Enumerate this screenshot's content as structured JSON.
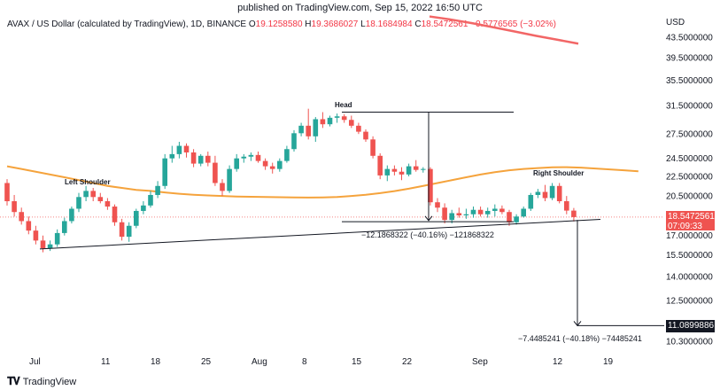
{
  "header": {
    "published": "published on TradingView.com, Sep 15, 2022 16:50 UTC"
  },
  "legend": {
    "symbol": "AVAX / US Dollar (calculated by TradingView), 1D, BINANCE",
    "o_label": "O",
    "o": "19.1258580",
    "h_label": "H",
    "h": "19.3686027",
    "l_label": "L",
    "l": "18.1684984",
    "c_label": "C",
    "c": "18.5472561",
    "change": "−0.5776565 (−3.02%)"
  },
  "currency": "USD",
  "footer": {
    "brand": "TradingView"
  },
  "colors": {
    "up": "#26a69a",
    "down": "#ef5350",
    "ma50": "#f5a33c",
    "ma200": "#f26666",
    "last": "#ef5350"
  },
  "chart_data": {
    "type": "candlestick",
    "y_scale": "log",
    "y_ticks": [
      "43.5000000",
      "39.5000000",
      "35.5000000",
      "31.5000000",
      "27.5000000",
      "24.5000000",
      "22.5000000",
      "20.5000000",
      "17.0000000",
      "15.5000000",
      "14.0000000",
      "12.5000000",
      "10.3000000"
    ],
    "x_ticks": [
      "Jul",
      "11",
      "18",
      "25",
      "Aug",
      "8",
      "15",
      "22",
      "Sep",
      "12",
      "19"
    ],
    "last_price": "18.5472561",
    "countdown": "07:09:33",
    "target_price": "11.0899886",
    "annotations": {
      "head": "Head",
      "left_shoulder": "Left Shoulder",
      "right_shoulder": "Right Shoulder",
      "measure1": "−12.1868322 (−40.16%) −121868322",
      "measure2": "−7.4485241 (−40.18%) −74485241"
    },
    "candles": [
      [
        21.8,
        22.2,
        19.6,
        20.0
      ],
      [
        20.0,
        20.6,
        18.6,
        19.0
      ],
      [
        19.0,
        19.4,
        17.9,
        18.2
      ],
      [
        18.2,
        18.6,
        17.1,
        17.4
      ],
      [
        17.4,
        17.8,
        16.3,
        16.6
      ],
      [
        16.6,
        17.0,
        15.7,
        16.0
      ],
      [
        16.0,
        16.6,
        15.8,
        16.3
      ],
      [
        16.3,
        17.5,
        16.1,
        17.2
      ],
      [
        17.2,
        18.5,
        17.0,
        18.2
      ],
      [
        18.2,
        19.5,
        18.0,
        19.3
      ],
      [
        19.3,
        20.8,
        19.0,
        20.4
      ],
      [
        20.4,
        21.5,
        20.0,
        21.0
      ],
      [
        21.0,
        21.3,
        20.0,
        20.4
      ],
      [
        20.4,
        20.8,
        19.8,
        20.0
      ],
      [
        20.0,
        20.3,
        19.2,
        19.5
      ],
      [
        19.5,
        19.7,
        17.8,
        18.1
      ],
      [
        18.1,
        18.4,
        16.6,
        16.9
      ],
      [
        16.9,
        18.1,
        16.5,
        17.8
      ],
      [
        17.8,
        19.3,
        17.6,
        19.1
      ],
      [
        19.1,
        20.0,
        18.8,
        19.6
      ],
      [
        19.6,
        21.0,
        19.4,
        20.6
      ],
      [
        20.6,
        22.0,
        20.3,
        21.5
      ],
      [
        21.5,
        25.0,
        21.2,
        24.5
      ],
      [
        24.5,
        26.0,
        24.0,
        25.0
      ],
      [
        25.0,
        26.5,
        24.5,
        26.0
      ],
      [
        26.0,
        26.3,
        24.6,
        25.2
      ],
      [
        25.2,
        25.6,
        23.5,
        23.9
      ],
      [
        23.9,
        25.0,
        23.6,
        24.8
      ],
      [
        24.8,
        25.3,
        23.6,
        24.0
      ],
      [
        24.0,
        24.8,
        21.5,
        21.8
      ],
      [
        21.8,
        22.2,
        20.5,
        21.0
      ],
      [
        21.0,
        23.7,
        20.8,
        23.3
      ],
      [
        23.3,
        25.0,
        23.0,
        24.5
      ],
      [
        24.5,
        25.0,
        24.0,
        24.7
      ],
      [
        24.7,
        25.2,
        24.2,
        24.9
      ],
      [
        24.9,
        25.3,
        24.0,
        24.2
      ],
      [
        24.2,
        24.5,
        23.2,
        23.6
      ],
      [
        23.6,
        24.0,
        22.8,
        23.3
      ],
      [
        23.3,
        24.5,
        23.0,
        24.2
      ],
      [
        24.2,
        26.0,
        24.0,
        25.6
      ],
      [
        25.6,
        28.0,
        25.3,
        27.6
      ],
      [
        27.6,
        29.0,
        27.2,
        28.6
      ],
      [
        28.6,
        31.0,
        26.8,
        27.2
      ],
      [
        27.2,
        29.8,
        26.5,
        29.5
      ],
      [
        29.5,
        30.5,
        28.3,
        28.8
      ],
      [
        28.8,
        30.0,
        28.5,
        29.7
      ],
      [
        29.7,
        30.3,
        29.0,
        29.9
      ],
      [
        29.9,
        30.2,
        29.0,
        29.4
      ],
      [
        29.4,
        30.0,
        28.3,
        28.6
      ],
      [
        28.6,
        29.0,
        27.5,
        27.8
      ],
      [
        27.8,
        28.1,
        26.5,
        26.8
      ],
      [
        26.8,
        27.2,
        24.5,
        24.8
      ],
      [
        24.8,
        25.1,
        22.2,
        22.6
      ],
      [
        22.6,
        23.7,
        22.0,
        23.3
      ],
      [
        23.3,
        23.7,
        22.6,
        23.0
      ],
      [
        23.0,
        23.5,
        22.1,
        22.7
      ],
      [
        22.7,
        23.9,
        22.5,
        23.6
      ],
      [
        23.6,
        24.3,
        23.0,
        23.2
      ],
      [
        23.2,
        23.5,
        22.9,
        23.3
      ],
      [
        23.3,
        23.5,
        19.6,
        19.9
      ],
      [
        19.9,
        20.3,
        19.0,
        19.4
      ],
      [
        19.4,
        19.8,
        18.0,
        18.3
      ],
      [
        18.3,
        19.2,
        18.0,
        18.9
      ],
      [
        18.9,
        19.4,
        18.5,
        18.7
      ],
      [
        18.7,
        19.3,
        18.4,
        18.8
      ],
      [
        18.8,
        19.5,
        18.5,
        19.2
      ],
      [
        19.2,
        19.5,
        18.6,
        18.8
      ],
      [
        18.8,
        19.4,
        18.5,
        19.1
      ],
      [
        19.1,
        19.7,
        18.6,
        19.3
      ],
      [
        19.3,
        19.6,
        18.8,
        19.0
      ],
      [
        19.0,
        19.2,
        17.8,
        18.1
      ],
      [
        18.1,
        18.8,
        17.9,
        18.6
      ],
      [
        18.6,
        19.5,
        18.5,
        19.3
      ],
      [
        19.3,
        20.8,
        19.1,
        20.6
      ],
      [
        20.6,
        21.2,
        20.3,
        20.9
      ],
      [
        20.9,
        21.6,
        20.0,
        20.3
      ],
      [
        20.3,
        21.8,
        20.1,
        21.5
      ],
      [
        21.5,
        21.8,
        19.8,
        20.0
      ],
      [
        20.0,
        20.5,
        18.8,
        19.13
      ],
      [
        19.13,
        19.37,
        18.17,
        18.55
      ]
    ],
    "ma50": [
      23.6,
      23.3,
      23.0,
      22.7,
      22.4,
      22.1,
      21.8,
      21.5,
      21.3,
      21.1,
      21.0,
      20.85,
      20.72,
      20.62,
      20.55,
      20.5,
      20.45,
      20.42,
      20.4,
      20.38,
      20.36,
      20.35,
      20.36,
      20.4,
      20.5,
      20.62,
      20.78,
      20.98,
      21.22,
      21.5,
      21.8,
      22.1,
      22.4,
      22.7,
      22.95,
      23.15,
      23.3,
      23.4,
      23.48,
      23.5,
      23.45,
      23.35,
      23.25,
      23.15,
      23.05
    ],
    "ma200": [
      48.0,
      47.3,
      46.5,
      45.6,
      44.7,
      43.8,
      43.0,
      42.2
    ]
  }
}
